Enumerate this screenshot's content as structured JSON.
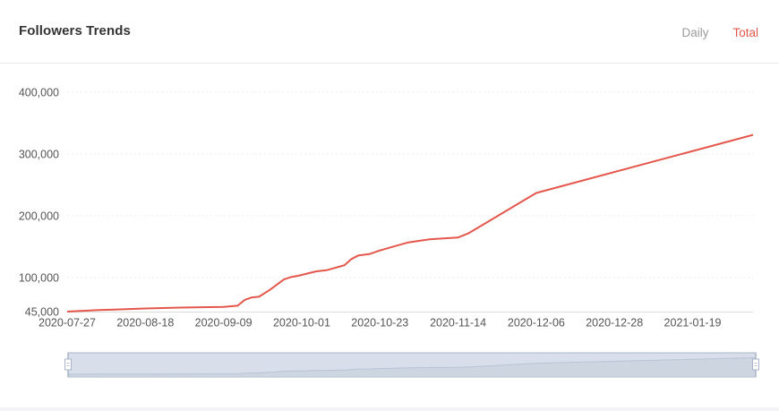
{
  "header": {
    "title": "Followers Trends",
    "tabs": [
      {
        "label": "Daily",
        "active": false
      },
      {
        "label": "Total",
        "active": true
      }
    ]
  },
  "colors": {
    "line": "#e4574c",
    "active_tab": "#e4574c",
    "inactive_tab": "#9b9b9b",
    "grid": "#ececec",
    "slider_fill": "#d8dfea",
    "slider_border": "#a9b4c6"
  },
  "chart_data": {
    "type": "line",
    "title": "Followers Trends",
    "xlabel": "",
    "ylabel": "",
    "x_range": [
      "2020-07-27",
      "2021-02-05"
    ],
    "ylim": [
      45000,
      400000
    ],
    "y_ticks": [
      45000,
      100000,
      200000,
      300000,
      400000
    ],
    "y_tick_labels": [
      "45,000",
      "100,000",
      "200,000",
      "300,000",
      "400,000"
    ],
    "x_tick_labels": [
      "2020-07-27",
      "2020-08-18",
      "2020-09-09",
      "2020-10-01",
      "2020-10-23",
      "2020-11-14",
      "2020-12-06",
      "2020-12-28",
      "2021-01-19"
    ],
    "grid": true,
    "data_zoom": true,
    "series": [
      {
        "name": "Total",
        "x": [
          "2020-07-27",
          "2020-08-05",
          "2020-08-18",
          "2020-08-28",
          "2020-09-09",
          "2020-09-13",
          "2020-09-15",
          "2020-09-17",
          "2020-09-19",
          "2020-09-22",
          "2020-09-26",
          "2020-09-28",
          "2020-09-30",
          "2020-10-05",
          "2020-10-08",
          "2020-10-13",
          "2020-10-15",
          "2020-10-17",
          "2020-10-20",
          "2020-10-23",
          "2020-10-31",
          "2020-11-06",
          "2020-11-14",
          "2020-11-17",
          "2020-12-06",
          "2021-02-05"
        ],
        "values": [
          45000,
          47500,
          50000,
          51500,
          52500,
          54500,
          64000,
          68000,
          69000,
          80000,
          97000,
          101000,
          103000,
          110000,
          112000,
          120000,
          130000,
          136000,
          138000,
          144000,
          157000,
          162000,
          165000,
          172000,
          237000,
          331000
        ]
      }
    ]
  }
}
